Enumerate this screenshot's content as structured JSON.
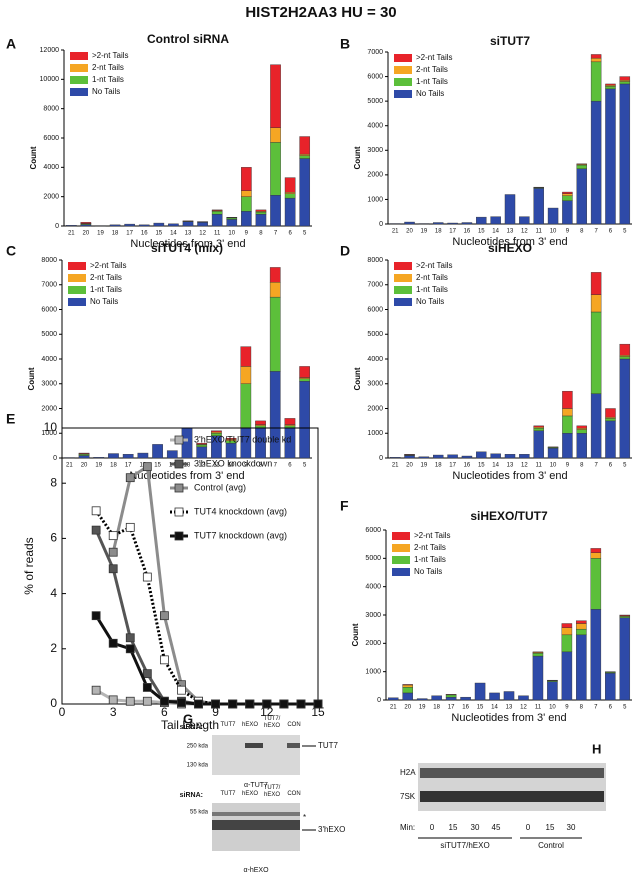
{
  "title": "HIST2H2AA3    HU = 30",
  "chart_data": [
    {
      "type": "stacked_bar",
      "label": "A",
      "title": "Control siRNA",
      "xlabel": "Nucleotides from 3' end",
      "ylabel": "Count",
      "categories": [
        "21",
        "20",
        "19",
        "18",
        "17",
        "16",
        "15",
        "14",
        "13",
        "12",
        "11",
        "10",
        "9",
        "8",
        "7",
        "6",
        "5"
      ],
      "ylim": [
        0,
        12000
      ],
      "yticks": [
        0,
        2000,
        4000,
        6000,
        8000,
        10000,
        12000
      ],
      "series": [
        {
          "name": "No Tails",
          "color": "#2e4aa8",
          "values": [
            50,
            100,
            30,
            80,
            130,
            80,
            200,
            150,
            300,
            250,
            800,
            450,
            1000,
            800,
            2100,
            1900,
            4600
          ]
        },
        {
          "name": "1-nt Tails",
          "color": "#5cbf3a",
          "values": [
            0,
            50,
            0,
            0,
            0,
            0,
            0,
            0,
            30,
            30,
            200,
            100,
            1000,
            150,
            3600,
            300,
            200
          ]
        },
        {
          "name": "2-nt Tails",
          "color": "#f5a623",
          "values": [
            0,
            20,
            0,
            0,
            0,
            0,
            0,
            0,
            10,
            10,
            50,
            30,
            400,
            50,
            1000,
            100,
            100
          ]
        },
        {
          "name": ">2-nt Tails",
          "color": "#e8232a",
          "values": [
            0,
            80,
            0,
            0,
            0,
            0,
            0,
            0,
            10,
            10,
            50,
            20,
            1600,
            100,
            4300,
            1000,
            1200
          ]
        }
      ]
    },
    {
      "type": "stacked_bar",
      "label": "B",
      "title": "siTUT7",
      "xlabel": "Nucleotides from 3' end",
      "ylabel": "Count",
      "categories": [
        "21",
        "20",
        "19",
        "18",
        "17",
        "16",
        "15",
        "14",
        "13",
        "12",
        "11",
        "10",
        "9",
        "8",
        "7",
        "6",
        "5"
      ],
      "ylim": [
        0,
        7000
      ],
      "yticks": [
        0,
        1000,
        2000,
        3000,
        4000,
        5000,
        6000,
        7000
      ],
      "series": [
        {
          "name": "No Tails",
          "color": "#2e4aa8",
          "values": [
            20,
            80,
            20,
            60,
            40,
            60,
            280,
            300,
            1200,
            300,
            1450,
            650,
            950,
            2250,
            5000,
            5500,
            5700
          ]
        },
        {
          "name": "1-nt Tails",
          "color": "#5cbf3a",
          "values": [
            0,
            0,
            0,
            0,
            0,
            0,
            0,
            0,
            0,
            0,
            30,
            0,
            200,
            150,
            1600,
            100,
            100
          ]
        },
        {
          "name": "2-nt Tails",
          "color": "#f5a623",
          "values": [
            0,
            0,
            0,
            0,
            0,
            0,
            0,
            0,
            0,
            0,
            10,
            0,
            80,
            30,
            150,
            50,
            50
          ]
        },
        {
          "name": ">2-nt Tails",
          "color": "#e8232a",
          "values": [
            0,
            0,
            0,
            0,
            0,
            0,
            0,
            0,
            0,
            0,
            10,
            0,
            70,
            20,
            150,
            50,
            150
          ]
        }
      ]
    },
    {
      "type": "stacked_bar",
      "label": "C",
      "title": "siTUT4 (mix)",
      "xlabel": "Nucleotides from 3' end",
      "ylabel": "Count",
      "categories": [
        "21",
        "20",
        "19",
        "18",
        "17",
        "16",
        "15",
        "14",
        "13",
        "12",
        "11",
        "10",
        "9",
        "8",
        "7",
        "6",
        "5"
      ],
      "ylim": [
        0,
        8000
      ],
      "yticks": [
        0,
        1000,
        2000,
        3000,
        4000,
        5000,
        6000,
        7000,
        8000
      ],
      "series": [
        {
          "name": "No Tails",
          "color": "#2e4aa8",
          "values": [
            20,
            100,
            30,
            180,
            150,
            200,
            550,
            300,
            1200,
            450,
            900,
            600,
            1200,
            1200,
            3500,
            1200,
            3100
          ]
        },
        {
          "name": "1-nt Tails",
          "color": "#5cbf3a",
          "values": [
            0,
            50,
            0,
            0,
            0,
            0,
            0,
            0,
            0,
            80,
            100,
            100,
            1800,
            100,
            3000,
            100,
            100
          ]
        },
        {
          "name": "2-nt Tails",
          "color": "#f5a623",
          "values": [
            0,
            20,
            0,
            0,
            0,
            0,
            0,
            0,
            0,
            30,
            50,
            50,
            700,
            50,
            600,
            50,
            50
          ]
        },
        {
          "name": ">2-nt Tails",
          "color": "#e8232a",
          "values": [
            0,
            30,
            0,
            0,
            0,
            0,
            0,
            0,
            0,
            40,
            50,
            50,
            800,
            150,
            600,
            250,
            450
          ]
        }
      ]
    },
    {
      "type": "stacked_bar",
      "label": "D",
      "title": "siHEXO",
      "xlabel": "Nucleotides from 3' end",
      "ylabel": "Count",
      "categories": [
        "21",
        "20",
        "19",
        "18",
        "17",
        "16",
        "15",
        "14",
        "13",
        "12",
        "11",
        "10",
        "9",
        "8",
        "7",
        "6",
        "5"
      ],
      "ylim": [
        0,
        8000
      ],
      "yticks": [
        0,
        1000,
        2000,
        3000,
        4000,
        5000,
        6000,
        7000,
        8000
      ],
      "series": [
        {
          "name": "No Tails",
          "color": "#2e4aa8",
          "values": [
            30,
            100,
            50,
            120,
            130,
            80,
            250,
            170,
            150,
            150,
            1100,
            400,
            1000,
            1000,
            2600,
            1500,
            4000
          ]
        },
        {
          "name": "1-nt Tails",
          "color": "#5cbf3a",
          "values": [
            0,
            20,
            0,
            0,
            0,
            0,
            0,
            0,
            0,
            0,
            100,
            30,
            700,
            150,
            3300,
            100,
            100
          ]
        },
        {
          "name": "2-nt Tails",
          "color": "#f5a623",
          "values": [
            0,
            10,
            0,
            0,
            0,
            0,
            0,
            0,
            0,
            0,
            50,
            10,
            300,
            50,
            700,
            50,
            50
          ]
        },
        {
          "name": ">2-nt Tails",
          "color": "#e8232a",
          "values": [
            0,
            20,
            0,
            0,
            0,
            0,
            0,
            0,
            0,
            0,
            50,
            10,
            700,
            100,
            900,
            350,
            450
          ]
        }
      ]
    },
    {
      "type": "line",
      "label": "E",
      "xlabel": "Tail Length",
      "ylabel": "% of reads",
      "x": [
        2,
        3,
        4,
        5,
        6,
        7,
        8,
        9,
        10,
        11,
        12,
        13,
        14,
        15
      ],
      "xlim": [
        0,
        15
      ],
      "xticks": [
        0,
        3,
        6,
        9,
        12,
        15
      ],
      "ylim": [
        0,
        10
      ],
      "yticks": [
        0,
        2,
        4,
        6,
        8,
        10
      ],
      "series": [
        {
          "name": "3'hEXO/TUT7 double kd",
          "color": "#b4b4b4",
          "marker_color": "#b4b4b4",
          "linestyle": "solid",
          "values": [
            0.5,
            0.15,
            0.1,
            0.1,
            0.05,
            0,
            0,
            0,
            0,
            0,
            0,
            0,
            0,
            0
          ]
        },
        {
          "name": "3'hEXO knockdown",
          "color": "#555555",
          "marker_color": "#555555",
          "linestyle": "solid",
          "values": [
            6.3,
            4.9,
            2.4,
            1.1,
            0.1,
            0.1,
            0,
            0,
            0,
            0,
            0,
            0,
            0,
            0
          ]
        },
        {
          "name": "Control (avg)",
          "color": "#8c8c8c",
          "marker_color": "#8c8c8c",
          "linestyle": "solid",
          "values": [
            null,
            5.5,
            8.2,
            8.6,
            3.2,
            0.7,
            0.1,
            0,
            0,
            0,
            0,
            0,
            0,
            0
          ]
        },
        {
          "name": "TUT4 knockdown (avg)",
          "color": "#000000",
          "marker_color": "#ffffff",
          "linestyle": "dotted",
          "values": [
            7.0,
            6.1,
            6.4,
            4.6,
            1.6,
            0.5,
            0.1,
            0,
            0,
            0,
            0,
            0,
            0,
            0
          ]
        },
        {
          "name": "TUT7 knockdown (avg)",
          "color": "#111111",
          "marker_color": "#111111",
          "linestyle": "solid",
          "values": [
            3.2,
            2.2,
            2.0,
            0.6,
            0.1,
            0.05,
            0,
            0,
            0,
            0,
            0,
            0,
            0,
            0
          ]
        }
      ]
    },
    {
      "type": "stacked_bar",
      "label": "F",
      "title": "siHEXO/TUT7",
      "xlabel": "Nucleotides from 3' end",
      "ylabel": "Count",
      "categories": [
        "21",
        "20",
        "19",
        "18",
        "17",
        "16",
        "15",
        "14",
        "13",
        "12",
        "11",
        "10",
        "9",
        "8",
        "7",
        "6",
        "5"
      ],
      "ylim": [
        0,
        6000
      ],
      "yticks": [
        0,
        1000,
        2000,
        3000,
        4000,
        5000,
        6000
      ],
      "series": [
        {
          "name": "No Tails",
          "color": "#2e4aa8",
          "values": [
            80,
            250,
            50,
            150,
            100,
            100,
            600,
            250,
            300,
            150,
            1550,
            650,
            1700,
            2300,
            3200,
            950,
            2900
          ]
        },
        {
          "name": "1-nt Tails",
          "color": "#5cbf3a",
          "values": [
            0,
            200,
            0,
            0,
            80,
            0,
            0,
            0,
            0,
            0,
            100,
            30,
            600,
            200,
            1800,
            30,
            50
          ]
        },
        {
          "name": "2-nt Tails",
          "color": "#f5a623",
          "values": [
            0,
            80,
            0,
            0,
            10,
            0,
            0,
            0,
            0,
            0,
            30,
            10,
            250,
            200,
            200,
            10,
            20
          ]
        },
        {
          "name": ">2-nt Tails",
          "color": "#e8232a",
          "values": [
            0,
            20,
            0,
            0,
            10,
            0,
            0,
            0,
            0,
            0,
            20,
            10,
            150,
            100,
            150,
            10,
            30
          ]
        }
      ]
    }
  ],
  "blots": {
    "G": {
      "label": "G",
      "top": {
        "row_label": "siRNA:",
        "lanes": [
          "TUT7",
          "hEXO",
          "TUT7/ hEXO",
          "CON"
        ],
        "markers": [
          "250 kda",
          "130 kda"
        ],
        "band": "TUT7",
        "antibody": "α-TUT7"
      },
      "bottom": {
        "row_label": "siRNA:",
        "lanes": [
          "TUT7",
          "hEXO",
          "TUT7/ hEXO",
          "CON"
        ],
        "markers": [
          "55 kda"
        ],
        "star": "*",
        "band": "3'hEXO",
        "antibody": "α-hEXO"
      }
    },
    "H": {
      "label": "H",
      "rows": [
        "H2A",
        "7SK"
      ],
      "time_label": "Min:",
      "times": [
        "0",
        "15",
        "30",
        "45",
        "0",
        "15",
        "30"
      ],
      "groups": [
        "siTUT7/hEXO",
        "Control"
      ]
    }
  }
}
